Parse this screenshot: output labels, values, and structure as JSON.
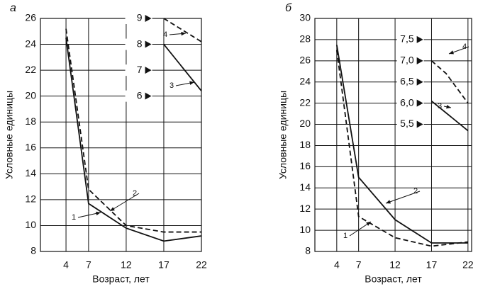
{
  "chart_data": [
    {
      "type": "line",
      "title": "а",
      "xlabel": "Возраст, лет",
      "ylabel": "Условные единицы",
      "xlim": [
        0.6,
        22
      ],
      "xticks": [
        4,
        7,
        12,
        17,
        22
      ],
      "ylim": [
        8,
        26
      ],
      "yticks": [
        8,
        10,
        12,
        14,
        16,
        18,
        20,
        22,
        24,
        26
      ],
      "y2lim": [
        0,
        9
      ],
      "y2ticks": [
        6,
        7,
        8,
        9
      ],
      "grid": true,
      "series": [
        {
          "name": "1",
          "color": "#111",
          "dashed": false,
          "x": [
            4,
            7,
            12,
            17,
            22
          ],
          "values": [
            24.5,
            11.7,
            9.8,
            8.8,
            9.2
          ]
        },
        {
          "name": "2",
          "color": "#111",
          "dashed": true,
          "x": [
            4,
            7,
            12,
            17,
            22
          ],
          "values": [
            25.2,
            12.8,
            10.0,
            9.5,
            9.5
          ]
        },
        {
          "name": "3",
          "color": "#111",
          "dashed": false,
          "axis": "y2",
          "x": [
            17,
            22
          ],
          "values": [
            8.0,
            6.2
          ]
        },
        {
          "name": "4",
          "color": "#111",
          "dashed": true,
          "axis": "y2",
          "x": [
            17,
            22
          ],
          "values": [
            9.0,
            8.1
          ]
        }
      ]
    },
    {
      "type": "line",
      "title": "б",
      "xlabel": "Возраст, лет",
      "ylabel": "Условные единицы",
      "xlim": [
        1,
        22.5
      ],
      "xticks": [
        4,
        7,
        12,
        17,
        22
      ],
      "ylim": [
        8,
        30
      ],
      "yticks": [
        8,
        10,
        12,
        14,
        16,
        18,
        20,
        22,
        24,
        26,
        28,
        30
      ],
      "y2lim": [
        2.5,
        8.0
      ],
      "y2ticks": [
        {
          "value": 5.5,
          "label": "5,5"
        },
        {
          "value": 6.0,
          "label": "6,0"
        },
        {
          "value": 6.5,
          "label": "6,5"
        },
        {
          "value": 7.0,
          "label": "7,0"
        },
        {
          "value": 7.5,
          "label": "7,5"
        }
      ],
      "grid": true,
      "series": [
        {
          "name": "1",
          "color": "#111",
          "dashed": true,
          "x": [
            4,
            7,
            12,
            17,
            22
          ],
          "values": [
            27.0,
            11.3,
            9.3,
            8.5,
            8.9
          ]
        },
        {
          "name": "2",
          "color": "#111",
          "dashed": false,
          "x": [
            4,
            7,
            12,
            17,
            22
          ],
          "values": [
            27.5,
            15.0,
            11.0,
            8.8,
            8.8
          ]
        },
        {
          "name": "3",
          "color": "#111",
          "dashed": false,
          "axis": "y2",
          "x": [
            17,
            22
          ],
          "values": [
            6.05,
            5.35
          ]
        },
        {
          "name": "4",
          "color": "#111",
          "dashed": true,
          "axis": "y2",
          "x": [
            17,
            19,
            22
          ],
          "values": [
            7.0,
            6.7,
            6.0
          ]
        }
      ]
    }
  ]
}
